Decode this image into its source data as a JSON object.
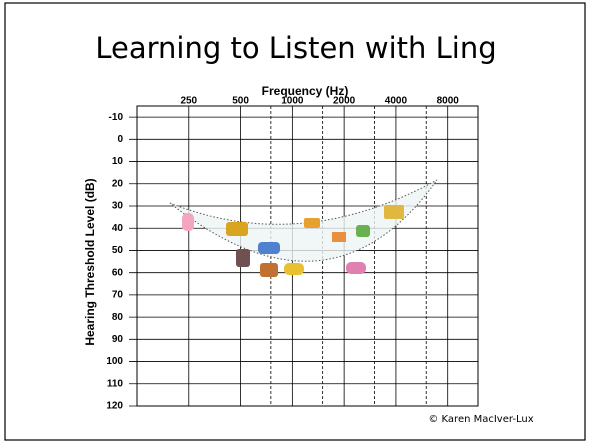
{
  "chart_data": {
    "type": "audiogram",
    "title": "Learning to Listen with Ling",
    "x_label": "Frequency (Hz)",
    "y_label": "Hearing Threshold Level (dB)",
    "log_x": true,
    "xlim": [
      125,
      12000
    ],
    "xticks": [
      250,
      500,
      1000,
      2000,
      4000,
      8000
    ],
    "minor_xticks": [
      750,
      1500,
      3000,
      6000
    ],
    "ylim": [
      -15,
      120
    ],
    "y_reversed": true,
    "yticks": [
      -10,
      0,
      10,
      20,
      30,
      40,
      50,
      60,
      70,
      80,
      90,
      100,
      110,
      120
    ],
    "grid": true,
    "credit": "© Karen MacIver-Lux"
  }
}
